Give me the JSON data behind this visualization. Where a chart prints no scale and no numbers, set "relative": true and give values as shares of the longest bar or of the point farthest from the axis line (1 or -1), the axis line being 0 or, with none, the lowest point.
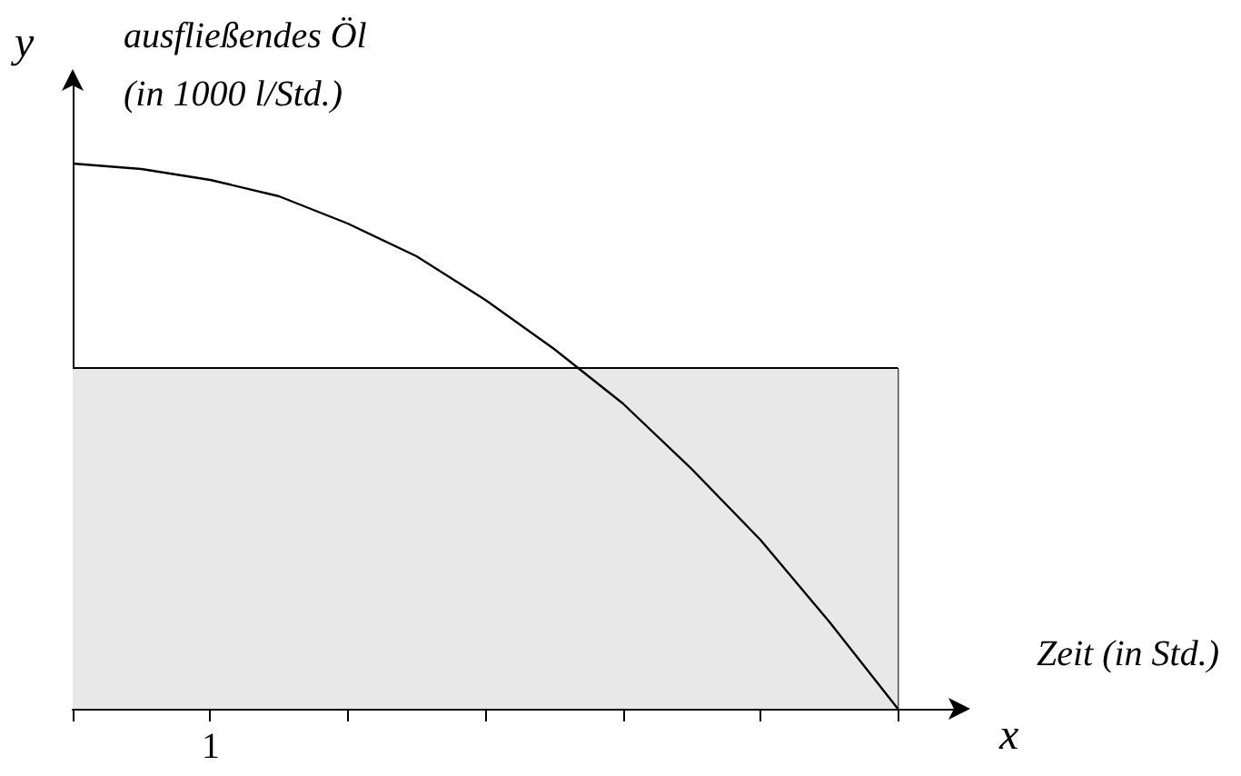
{
  "chart_data": {
    "type": "line",
    "relative": true,
    "xlabel": "x",
    "ylabel": "y",
    "annotations": [
      "ausfließendes Öl",
      "(in 1000 l/Std.)",
      "Zeit (in Std.)",
      "1"
    ],
    "categories": [
      null,
      null,
      null,
      null,
      null,
      null,
      null,
      null,
      null,
      null,
      null,
      null,
      null,
      null
    ],
    "grid": false,
    "marker": "none",
    "line_style": "solid",
    "series": [
      {
        "type": "area",
        "color": "#e8e8e8",
        "values": [
          0.625,
          0.625,
          0.625,
          0.625,
          0.625,
          0.625,
          0.625,
          0.625,
          0.625,
          0.625,
          0.625,
          0.625,
          0.625,
          null
        ]
      },
      {
        "color": "#000000",
        "values": [
          1,
          0.99,
          0.97,
          0.94,
          0.89,
          0.83,
          0.75,
          0.66,
          0.56,
          0.44,
          0.31,
          0.16,
          0,
          null
        ]
      }
    ]
  }
}
